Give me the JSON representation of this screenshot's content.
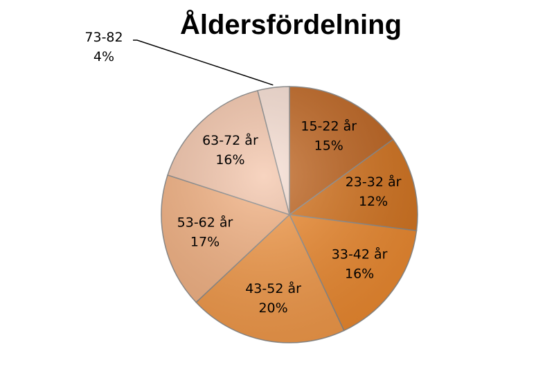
{
  "chart_data": {
    "type": "pie",
    "title": "Åldersfördelning",
    "slices": [
      {
        "label": "15-22 år",
        "value": 15,
        "value_label": "15%",
        "color": "#c0641e"
      },
      {
        "label": "23-32 år",
        "value": 12,
        "value_label": "12%",
        "color": "#d6741e"
      },
      {
        "label": "33-42 år",
        "value": 16,
        "value_label": "16%",
        "color": "#ef8a2e"
      },
      {
        "label": "43-52 år",
        "value": 20,
        "value_label": "20%",
        "color": "#f59a48"
      },
      {
        "label": "53-62 år",
        "value": 17,
        "value_label": "17%",
        "color": "#f5b282"
      },
      {
        "label": "63-72 år",
        "value": 16,
        "value_label": "16%",
        "color": "#f5c6ab"
      },
      {
        "label": "73-82",
        "value": 4,
        "value_label": "4%",
        "color": "#f8dfd3"
      }
    ],
    "legend": "none",
    "label_placement": "inside, with leader line for small slice"
  }
}
